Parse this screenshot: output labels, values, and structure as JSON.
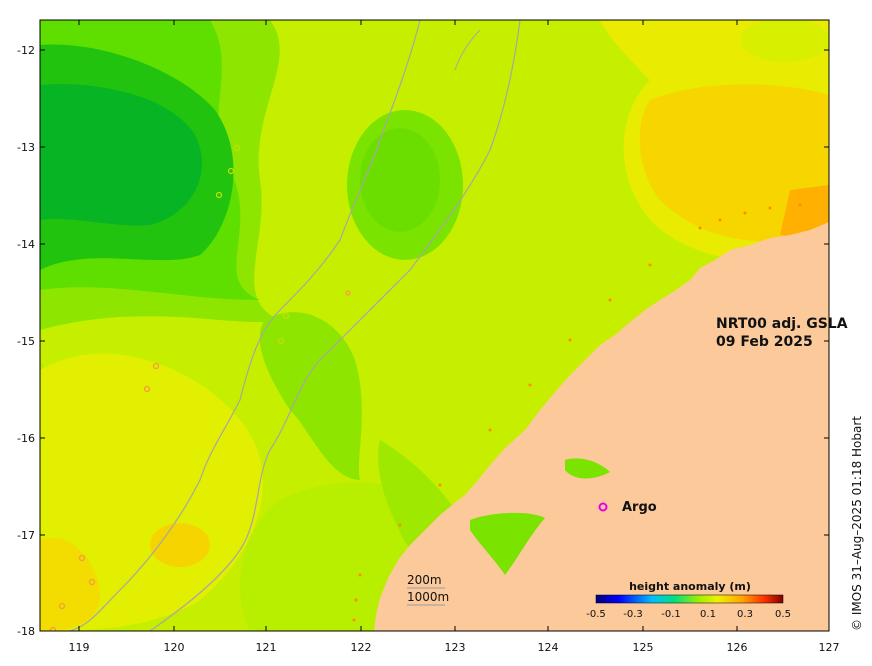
{
  "map": {
    "title_line1": "NRT00 adj. GSLA",
    "title_line2": "09 Feb 2025",
    "credit": "© IMOS 31–Aug–2025 01:18 Hobart",
    "x_ticks": [
      "119",
      "120",
      "121",
      "122",
      "123",
      "124",
      "125",
      "126",
      "127"
    ],
    "y_ticks": [
      "-12",
      "-13",
      "-14",
      "-15",
      "-16",
      "-17",
      "-18"
    ],
    "argo_label": "Argo",
    "contour_200": "200m",
    "contour_1000": "1000m",
    "colorbar": {
      "title": "height anomaly (m)",
      "ticks": [
        "-0.5",
        "-0.3",
        "-0.1",
        "0.1",
        "0.3",
        "0.5"
      ],
      "range": [
        -0.5,
        0.5
      ]
    },
    "colors": {
      "land": "#fbc99a",
      "sea_base": "#c9f000",
      "argo_marker": "#e600e6"
    }
  }
}
